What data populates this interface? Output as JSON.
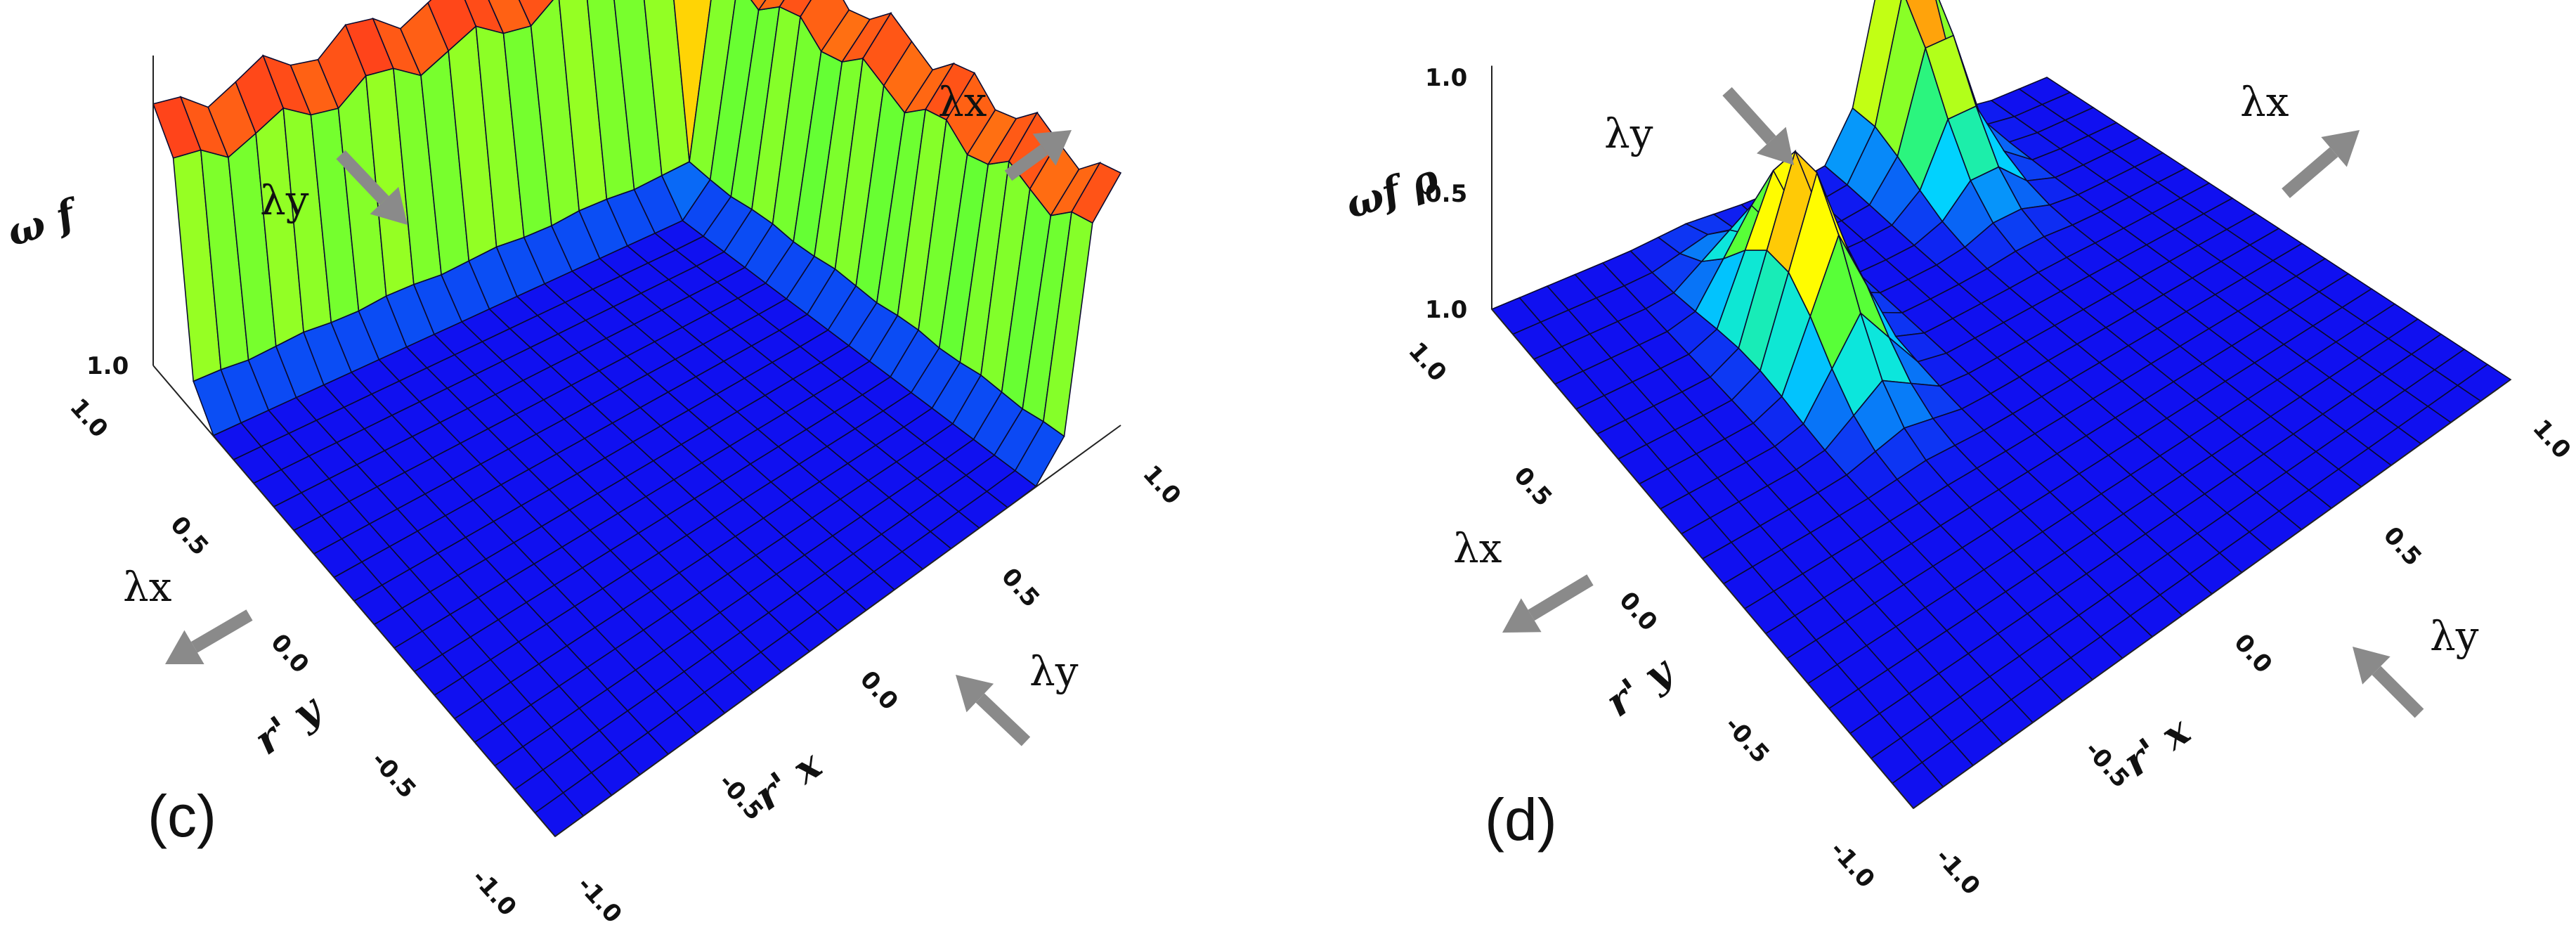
{
  "chart_data": [
    {
      "type": "surface3d",
      "panel_label": "(c)",
      "z_axis_label": "ω f",
      "x_axis_label": "r' x",
      "y_axis_label": "r' y",
      "x_ticks": [
        "-1.0",
        "-0.5",
        "0.0",
        "0.5",
        "1.0"
      ],
      "y_ticks": [
        "-1.0",
        "-0.5",
        "0.0",
        "0.5",
        "1.0"
      ],
      "z_ticks": [
        "1.0"
      ],
      "xlim": [
        -1.0,
        1.0
      ],
      "ylim": [
        -1.0,
        1.0
      ],
      "features": [
        {
          "kind": "ridge",
          "along": "x",
          "y_range": [
            0.85,
            1.0
          ],
          "height": 0.85
        },
        {
          "kind": "ridge",
          "along": "y",
          "x_range": [
            0.85,
            1.0
          ],
          "height": 0.82
        }
      ],
      "direction_labels": [
        "λy",
        "λx",
        "λx",
        "λy"
      ],
      "colormap": [
        "#1010f0",
        "#00e0ff",
        "#40ff40",
        "#ffff00",
        "#ff7a10",
        "#ff2020"
      ]
    },
    {
      "type": "surface3d",
      "panel_label": "(d)",
      "z_axis_label": "ωf ρ",
      "x_axis_label": "r' x",
      "y_axis_label": "r' y",
      "x_ticks": [
        "-1.0",
        "-0.5",
        "0.0",
        "0.5",
        "1.0"
      ],
      "y_ticks": [
        "-1.0",
        "-0.5",
        "0.0",
        "0.5",
        "1.0"
      ],
      "z_ticks": [
        "1.0",
        "0.5",
        "1.0"
      ],
      "xlim": [
        -1.0,
        1.0
      ],
      "ylim": [
        -1.0,
        1.0
      ],
      "features": [
        {
          "kind": "peak",
          "center": [
            -0.3,
            0.45
          ],
          "height": 0.82
        },
        {
          "kind": "peak",
          "center": [
            0.45,
            0.95
          ],
          "height": 0.9
        }
      ],
      "direction_labels": [
        "λy",
        "λx",
        "λx",
        "λy"
      ],
      "colormap": [
        "#1010f0",
        "#00e0ff",
        "#40ff40",
        "#ffff00",
        "#ff7a10",
        "#ff2020"
      ]
    }
  ]
}
